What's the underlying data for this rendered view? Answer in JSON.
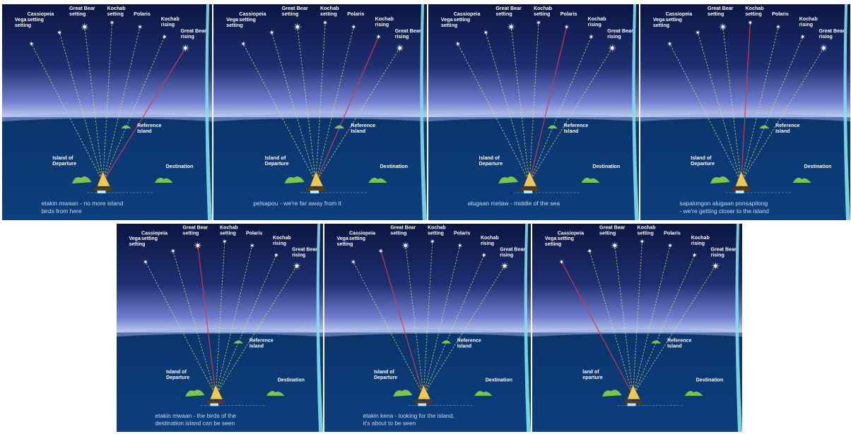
{
  "labels": {
    "vega": [
      "Vega",
      "setting"
    ],
    "cassiopeia": [
      "Cassiopeia",
      "setting"
    ],
    "great_bear_setting": [
      "Great Bear",
      "setting"
    ],
    "kochab_setting": [
      "Kochab",
      "setting"
    ],
    "polaris": [
      "Polaris"
    ],
    "kochab_rising": [
      "Kochab",
      "rising"
    ],
    "great_bear_rising": [
      "Great Bear",
      "rising"
    ],
    "reference_island": [
      "Reference",
      "Island"
    ],
    "island_of_departure": [
      "Island of",
      "Departure"
    ],
    "destination": [
      "Destination"
    ]
  },
  "panels": [
    {
      "caption": [
        "etakin mwaan - no more island",
        "birds from here"
      ],
      "red_star": "great_bear_rising",
      "departure_label": [
        "Island of",
        "Departure"
      ]
    },
    {
      "caption": [
        "pelsapou - we're far away from it"
      ],
      "red_star": "kochab_rising",
      "departure_label": [
        "Island of",
        "Departure"
      ]
    },
    {
      "caption": [
        "alugaan metaw - middle of the sea"
      ],
      "red_star": "polaris",
      "departure_label": [
        "Island of",
        "Departure"
      ]
    },
    {
      "caption": [
        "sapalongon alugaan ponsapilong",
        "- we're getting closer to the island"
      ],
      "red_star": "kochab_setting",
      "departure_label": [
        "Island of",
        "Departure"
      ]
    },
    {
      "caption": [
        "etakin mwaan - the birds of the",
        "destination island can be seen"
      ],
      "red_star": "great_bear_setting",
      "departure_label": [
        "Island of",
        "Departure"
      ]
    },
    {
      "caption": [
        "etakin kena - looking for the island,",
        "it's about to be seen"
      ],
      "red_star": "cassiopeia",
      "departure_label": [
        "Island of",
        "Departure"
      ]
    },
    {
      "caption": [],
      "red_star": "vega",
      "departure_label": [
        "land of",
        "eparture"
      ]
    }
  ],
  "colors": {
    "sky_top": "#0a1540",
    "sky_horizon": "#c9d2f2",
    "sea": "#0c3f7e",
    "sight_line": "#d8e86a",
    "reference_line": "#d8394a",
    "island": "#7ec44a",
    "caption": "#c9dcf0",
    "divider": "#7fe0ea"
  }
}
